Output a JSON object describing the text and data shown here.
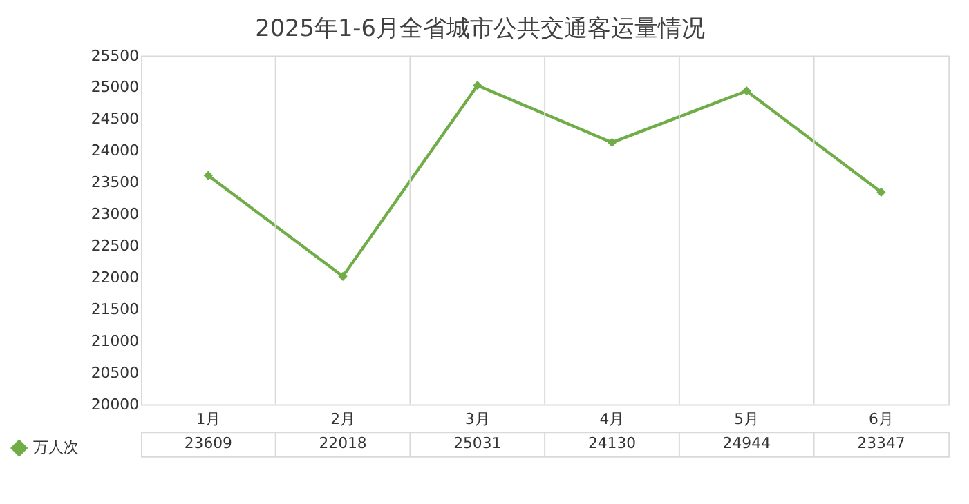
{
  "chart_data": {
    "type": "line",
    "title": "2025年1-6月全省城市公共交通客运量情况",
    "categories": [
      "1月",
      "2月",
      "3月",
      "4月",
      "5月",
      "6月"
    ],
    "series": [
      {
        "name": "万人次",
        "color": "#70ad47",
        "values": [
          23609,
          22018,
          25031,
          24130,
          24944,
          23347
        ]
      }
    ],
    "ylim": [
      20000,
      25500
    ],
    "yticks": [
      20000,
      20500,
      21000,
      21500,
      22000,
      22500,
      23000,
      23500,
      24000,
      24500,
      25000,
      25500
    ],
    "grid": "x",
    "marker": "diamond",
    "legend": "bottom left",
    "data_labels": true
  }
}
